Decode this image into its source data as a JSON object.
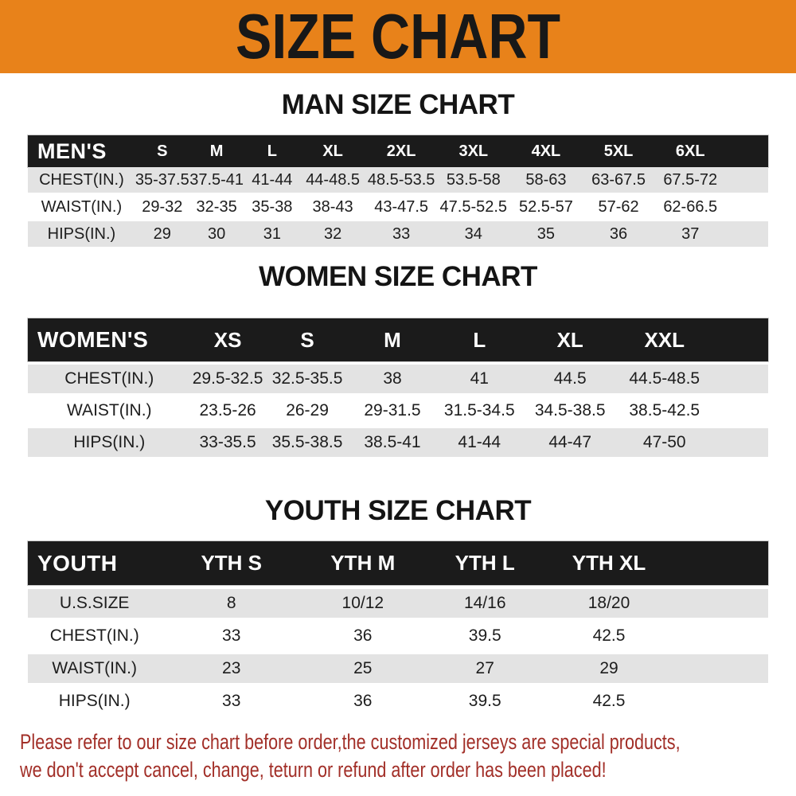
{
  "banner": {
    "title": "SIZE CHART"
  },
  "colors": {
    "banner_orange": "#e8821a",
    "bar_black": "#1b1b1b",
    "row_gray": "#e3e3e3",
    "disclaimer_red": "#a22f28"
  },
  "men": {
    "heading": "MAN SIZE CHART",
    "corner": "MEN'S",
    "sizes": [
      "S",
      "M",
      "L",
      "XL",
      "2XL",
      "3XL",
      "4XL",
      "5XL",
      "6XL"
    ],
    "rows": [
      {
        "label": "CHEST(IN.)",
        "values": [
          "35-37.5",
          "37.5-41",
          "41-44",
          "44-48.5",
          "48.5-53.5",
          "53.5-58",
          "58-63",
          "63-67.5",
          "67.5-72"
        ]
      },
      {
        "label": "WAIST(IN.)",
        "values": [
          "29-32",
          "32-35",
          "35-38",
          "38-43",
          "43-47.5",
          "47.5-52.5",
          "52.5-57",
          "57-62",
          "62-66.5"
        ]
      },
      {
        "label": "HIPS(IN.)",
        "values": [
          "29",
          "30",
          "31",
          "32",
          "33",
          "34",
          "35",
          "36",
          "37"
        ]
      }
    ]
  },
  "women": {
    "heading": "WOMEN SIZE CHART",
    "corner": "WOMEN'S",
    "sizes": [
      "XS",
      "S",
      "M",
      "L",
      "XL",
      "XXL"
    ],
    "rows": [
      {
        "label": "CHEST(IN.)",
        "values": [
          "29.5-32.5",
          "32.5-35.5",
          "38",
          "41",
          "44.5",
          "44.5-48.5"
        ]
      },
      {
        "label": "WAIST(IN.)",
        "values": [
          "23.5-26",
          "26-29",
          "29-31.5",
          "31.5-34.5",
          "34.5-38.5",
          "38.5-42.5"
        ]
      },
      {
        "label": "HIPS(IN.)",
        "values": [
          "33-35.5",
          "35.5-38.5",
          "38.5-41",
          "41-44",
          "44-47",
          "47-50"
        ]
      }
    ]
  },
  "youth": {
    "heading": "YOUTH SIZE CHART",
    "corner": "YOUTH",
    "sizes": [
      "YTH S",
      "YTH M",
      "YTH L",
      "YTH XL"
    ],
    "rows": [
      {
        "label": "U.S.SIZE",
        "values": [
          "8",
          "10/12",
          "14/16",
          "18/20"
        ]
      },
      {
        "label": "CHEST(IN.)",
        "values": [
          "33",
          "36",
          "39.5",
          "42.5"
        ]
      },
      {
        "label": "WAIST(IN.)",
        "values": [
          "23",
          "25",
          "27",
          "29"
        ]
      },
      {
        "label": "HIPS(IN.)",
        "values": [
          "33",
          "36",
          "39.5",
          "42.5"
        ]
      }
    ]
  },
  "disclaimer": {
    "line1": "Please refer to our size chart before order,the customized jerseys are special products,",
    "line2": "we don't accept cancel, change, teturn or refund after order has been placed!"
  }
}
